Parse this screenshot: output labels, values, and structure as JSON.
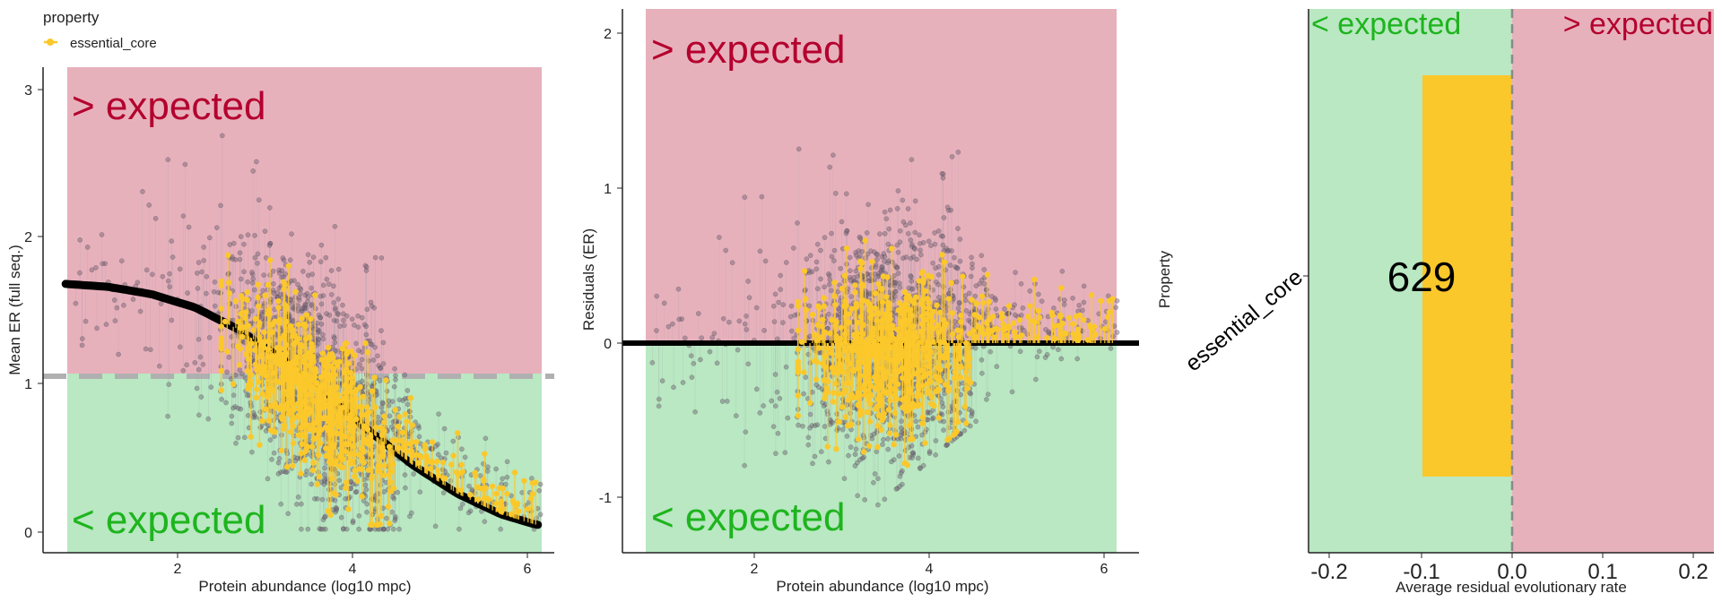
{
  "legend": {
    "title": "property",
    "entries": [
      {
        "label": "essential_core",
        "color": "#FBC82B"
      }
    ]
  },
  "colors": {
    "above": "#E7B1BC",
    "below": "#B9E8C2",
    "above_text": "#B4002E",
    "below_text": "#1EB41E",
    "grey_point": "#6E5F73",
    "highlight": "#FBC82B",
    "refline": "#B0B0B0"
  },
  "chart_data": [
    {
      "type": "scatter",
      "title": "",
      "xlabel": "Protein abundance (log10 mpc)",
      "ylabel": "Mean ER (full seq.)",
      "xlim": [
        0.7,
        6.2
      ],
      "ylim": [
        -0.15,
        3.3
      ],
      "xticks": [
        "2",
        "4",
        "6"
      ],
      "yticks": [
        "0",
        "1",
        "2",
        "3"
      ],
      "region_labels": {
        "above": "> expected",
        "below": "< expected"
      },
      "reference_line": {
        "style": "dashed",
        "y": 1.05
      },
      "fit_curve": {
        "x": [
          0.7,
          1.2,
          1.7,
          2.2,
          2.7,
          3.2,
          3.7,
          4.2,
          4.7,
          5.2,
          5.7,
          6.1
        ],
        "y": [
          1.68,
          1.66,
          1.61,
          1.52,
          1.37,
          1.17,
          0.93,
          0.68,
          0.45,
          0.26,
          0.12,
          0.05
        ]
      },
      "series": [
        {
          "name": "",
          "description": "all proteins (grey)",
          "note": "cloud centered near x 3.6, y 1.1"
        },
        {
          "name": "essential_core",
          "color": "#FBC82B"
        }
      ]
    },
    {
      "type": "scatter",
      "title": "",
      "xlabel": "Protein abundance (log10 mpc)",
      "ylabel": "Residuals (ER)",
      "xlim": [
        0.7,
        6.2
      ],
      "ylim": [
        -1.35,
        2.15
      ],
      "xticks": [
        "2",
        "4",
        "6"
      ],
      "yticks": [
        "-1",
        "0",
        "1",
        "2"
      ],
      "region_labels": {
        "above": "> expected",
        "below": "< expected"
      },
      "reference_line": {
        "style": "solid",
        "y": 0
      },
      "series": [
        {
          "name": ""
        },
        {
          "name": "essential_core",
          "color": "#FBC82B"
        }
      ]
    },
    {
      "type": "bar",
      "orientation": "horizontal",
      "title": "",
      "xlabel": "Average residual evolutionary rate",
      "ylabel": "Property",
      "categories": [
        "essential_core"
      ],
      "values": [
        -0.1
      ],
      "bar_label": "629",
      "xlim": [
        -0.22,
        0.22
      ],
      "xticks": [
        "-0.2",
        "-0.1",
        "0.0",
        "0.1",
        "0.2"
      ],
      "region_labels": {
        "above": "> expected",
        "below": "< expected"
      },
      "reference_line": {
        "style": "dashed",
        "x": 0
      }
    }
  ]
}
